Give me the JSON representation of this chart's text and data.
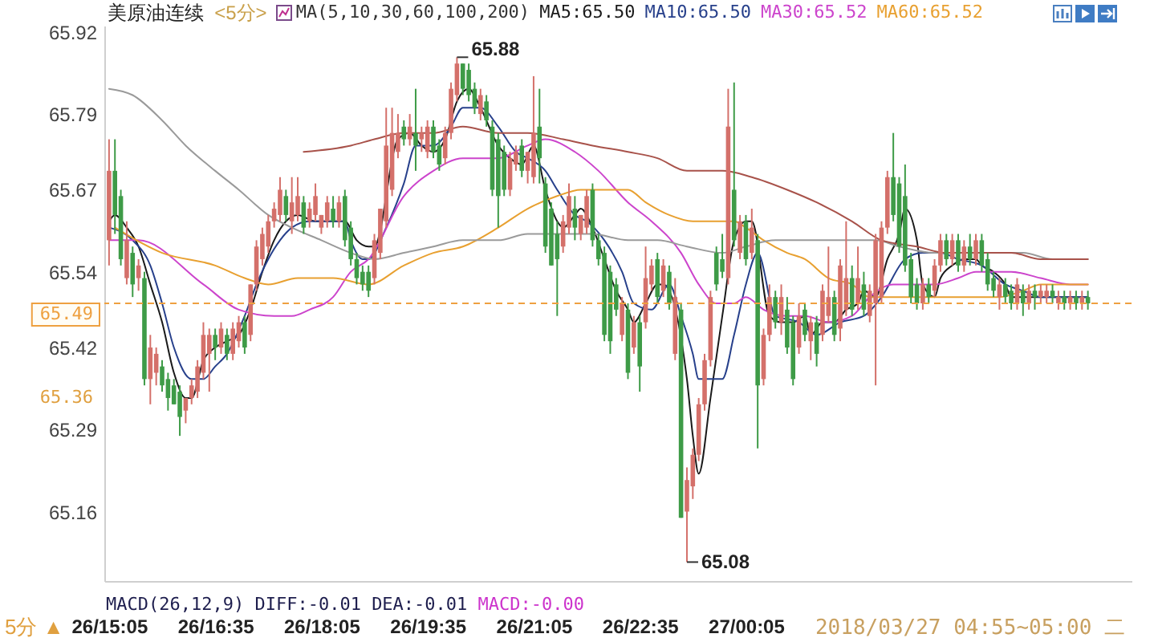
{
  "chart_data": {
    "type": "candlestick",
    "title": "美原油连续",
    "subtitle": "<5分>",
    "x": [
      "2018-03-26T15:05",
      "2018-03-26T15:10",
      "2018-03-26T15:15",
      "2018-03-26T15:20",
      "2018-03-26T15:25",
      "2018-03-26T15:30",
      "2018-03-26T15:35",
      "2018-03-26T15:40",
      "2018-03-26T15:45",
      "2018-03-26T15:50",
      "2018-03-26T15:55",
      "2018-03-26T16:00",
      "2018-03-26T16:05",
      "2018-03-26T16:10",
      "2018-03-26T16:15",
      "2018-03-26T16:20",
      "2018-03-26T16:25",
      "2018-03-26T16:30",
      "2018-03-26T16:35",
      "2018-03-26T16:40",
      "2018-03-26T16:45",
      "2018-03-26T16:50",
      "2018-03-26T16:55",
      "2018-03-26T17:00",
      "2018-03-26T17:05",
      "2018-03-26T17:10",
      "2018-03-26T17:15",
      "2018-03-26T17:20",
      "2018-03-26T17:25",
      "2018-03-26T17:30",
      "2018-03-26T17:35",
      "2018-03-26T17:40",
      "2018-03-26T17:45",
      "2018-03-26T17:50",
      "2018-03-26T17:55",
      "2018-03-26T18:00",
      "2018-03-26T18:05",
      "2018-03-26T18:10",
      "2018-03-26T18:15",
      "2018-03-26T18:20",
      "2018-03-26T18:25",
      "2018-03-26T18:30",
      "2018-03-26T18:35",
      "2018-03-26T18:40",
      "2018-03-26T18:45",
      "2018-03-26T18:50",
      "2018-03-26T18:55",
      "2018-03-26T19:00",
      "2018-03-26T19:05",
      "2018-03-26T19:10",
      "2018-03-26T19:15",
      "2018-03-26T19:20",
      "2018-03-26T19:25",
      "2018-03-26T19:30",
      "2018-03-26T19:35",
      "2018-03-26T19:40",
      "2018-03-26T19:45",
      "2018-03-26T19:50",
      "2018-03-26T19:55",
      "2018-03-26T20:00",
      "2018-03-26T20:05",
      "2018-03-26T20:10",
      "2018-03-26T20:15",
      "2018-03-26T20:20",
      "2018-03-26T20:25",
      "2018-03-26T20:30",
      "2018-03-26T20:35",
      "2018-03-26T20:40",
      "2018-03-26T20:45",
      "2018-03-26T20:50",
      "2018-03-26T20:55",
      "2018-03-26T21:00",
      "2018-03-26T21:05",
      "2018-03-26T21:10",
      "2018-03-26T21:15",
      "2018-03-26T21:20",
      "2018-03-26T21:25",
      "2018-03-26T21:30",
      "2018-03-26T21:35",
      "2018-03-26T21:40",
      "2018-03-26T21:45",
      "2018-03-26T21:50",
      "2018-03-26T21:55",
      "2018-03-26T22:00",
      "2018-03-26T22:05",
      "2018-03-26T22:10",
      "2018-03-26T22:15",
      "2018-03-26T22:20",
      "2018-03-26T22:25",
      "2018-03-26T22:30",
      "2018-03-26T22:35",
      "2018-03-26T22:40",
      "2018-03-26T22:45",
      "2018-03-26T22:50",
      "2018-03-26T22:55",
      "2018-03-26T23:00",
      "2018-03-26T23:05",
      "2018-03-26T23:10",
      "2018-03-26T23:15",
      "2018-03-26T23:20",
      "2018-03-26T23:25",
      "2018-03-26T23:30",
      "2018-03-26T23:35",
      "2018-03-26T23:40",
      "2018-03-26T23:45",
      "2018-03-26T23:50",
      "2018-03-26T23:55",
      "2018-03-27T00:00",
      "2018-03-27T00:05",
      "2018-03-27T00:10",
      "2018-03-27T00:15",
      "2018-03-27T00:20",
      "2018-03-27T00:25",
      "2018-03-27T00:30",
      "2018-03-27T00:35",
      "2018-03-27T00:40",
      "2018-03-27T00:45",
      "2018-03-27T00:50",
      "2018-03-27T00:55",
      "2018-03-27T01:00",
      "2018-03-27T01:05",
      "2018-03-27T01:10",
      "2018-03-27T01:15",
      "2018-03-27T01:20",
      "2018-03-27T01:25",
      "2018-03-27T01:30",
      "2018-03-27T01:35",
      "2018-03-27T01:40",
      "2018-03-27T01:45",
      "2018-03-27T01:50",
      "2018-03-27T01:55",
      "2018-03-27T02:00",
      "2018-03-27T02:05",
      "2018-03-27T02:10",
      "2018-03-27T02:15",
      "2018-03-27T02:20",
      "2018-03-27T02:25",
      "2018-03-27T02:30",
      "2018-03-27T02:35",
      "2018-03-27T02:40",
      "2018-03-27T02:45",
      "2018-03-27T02:50",
      "2018-03-27T02:55",
      "2018-03-27T03:00",
      "2018-03-27T03:05",
      "2018-03-27T03:10",
      "2018-03-27T03:15",
      "2018-03-27T03:20",
      "2018-03-27T03:25",
      "2018-03-27T03:30",
      "2018-03-27T03:35",
      "2018-03-27T03:40",
      "2018-03-27T03:45",
      "2018-03-27T03:50",
      "2018-03-27T03:55",
      "2018-03-27T04:00",
      "2018-03-27T04:05",
      "2018-03-27T04:10",
      "2018-03-27T04:15",
      "2018-03-27T04:20",
      "2018-03-27T04:25",
      "2018-03-27T04:30",
      "2018-03-27T04:35",
      "2018-03-27T04:40",
      "2018-03-27T04:45",
      "2018-03-27T04:50",
      "2018-03-27T04:55"
    ],
    "ohlc": [
      [
        65.59,
        65.75,
        65.55,
        65.7
      ],
      [
        65.7,
        65.75,
        65.6,
        65.63
      ],
      [
        65.66,
        65.67,
        65.55,
        65.56
      ],
      [
        65.53,
        65.62,
        65.52,
        65.59
      ],
      [
        65.57,
        65.58,
        65.5,
        65.52
      ],
      [
        65.53,
        65.56,
        65.51,
        65.55
      ],
      [
        65.53,
        65.54,
        65.36,
        65.37
      ],
      [
        65.37,
        65.44,
        65.33,
        65.42
      ],
      [
        65.38,
        65.42,
        65.36,
        65.41
      ],
      [
        65.39,
        65.4,
        65.35,
        65.36
      ],
      [
        65.37,
        65.38,
        65.32,
        65.34
      ],
      [
        65.36,
        65.37,
        65.33,
        65.33
      ],
      [
        65.35,
        65.36,
        65.28,
        65.31
      ],
      [
        65.32,
        65.34,
        65.3,
        65.34
      ],
      [
        65.34,
        65.37,
        65.33,
        65.36
      ],
      [
        65.35,
        65.4,
        65.34,
        65.39
      ],
      [
        65.38,
        65.46,
        65.37,
        65.44
      ],
      [
        65.41,
        65.45,
        65.35,
        65.44
      ],
      [
        65.44,
        65.45,
        65.4,
        65.42
      ],
      [
        65.42,
        65.46,
        65.41,
        65.45
      ],
      [
        65.44,
        65.45,
        65.4,
        65.41
      ],
      [
        65.41,
        65.46,
        65.4,
        65.45
      ],
      [
        65.43,
        65.47,
        65.42,
        65.46
      ],
      [
        65.46,
        65.47,
        65.41,
        65.42
      ],
      [
        65.44,
        65.52,
        65.43,
        65.52
      ],
      [
        65.52,
        65.59,
        65.51,
        65.58
      ],
      [
        65.56,
        65.61,
        65.55,
        65.6
      ],
      [
        65.58,
        65.63,
        65.57,
        65.62
      ],
      [
        65.62,
        65.65,
        65.61,
        65.64
      ],
      [
        65.63,
        65.69,
        65.62,
        65.67
      ],
      [
        65.66,
        65.67,
        65.62,
        65.63
      ],
      [
        65.62,
        65.69,
        65.6,
        65.65
      ],
      [
        65.63,
        65.69,
        65.62,
        65.66
      ],
      [
        65.65,
        65.66,
        65.6,
        65.61
      ],
      [
        65.62,
        65.65,
        65.61,
        65.64
      ],
      [
        65.63,
        65.68,
        65.62,
        65.66
      ],
      [
        65.61,
        65.63,
        65.6,
        65.63
      ],
      [
        65.62,
        65.66,
        65.61,
        65.65
      ],
      [
        65.64,
        65.66,
        65.61,
        65.62
      ],
      [
        65.62,
        65.66,
        65.61,
        65.65
      ],
      [
        65.66,
        65.67,
        65.58,
        65.59
      ],
      [
        65.61,
        65.62,
        65.55,
        65.56
      ],
      [
        65.56,
        65.57,
        65.52,
        65.53
      ],
      [
        65.54,
        65.55,
        65.51,
        65.52
      ],
      [
        65.54,
        65.55,
        65.5,
        65.51
      ],
      [
        65.53,
        65.6,
        65.52,
        65.59
      ],
      [
        65.57,
        65.64,
        65.56,
        65.64
      ],
      [
        65.62,
        65.8,
        65.61,
        65.74
      ],
      [
        65.67,
        65.8,
        65.66,
        65.76
      ],
      [
        65.73,
        65.79,
        65.72,
        65.76
      ],
      [
        65.77,
        65.78,
        65.74,
        65.75
      ],
      [
        65.75,
        65.79,
        65.74,
        65.77
      ],
      [
        65.76,
        65.83,
        65.7,
        65.74
      ],
      [
        65.75,
        65.77,
        65.73,
        65.76
      ],
      [
        65.73,
        65.78,
        65.72,
        65.77
      ],
      [
        65.77,
        65.78,
        65.72,
        65.73
      ],
      [
        65.74,
        65.75,
        65.7,
        65.71
      ],
      [
        65.72,
        65.77,
        65.71,
        65.76
      ],
      [
        65.76,
        65.84,
        65.75,
        65.83
      ],
      [
        65.82,
        65.88,
        65.81,
        65.87
      ],
      [
        65.87,
        65.87,
        65.82,
        65.83
      ],
      [
        65.86,
        65.87,
        65.81,
        65.82
      ],
      [
        65.83,
        65.84,
        65.79,
        65.8
      ],
      [
        65.79,
        65.83,
        65.78,
        65.82
      ],
      [
        65.81,
        65.82,
        65.77,
        65.78
      ],
      [
        65.77,
        65.78,
        65.66,
        65.67
      ],
      [
        65.75,
        65.76,
        65.61,
        65.66
      ],
      [
        65.73,
        65.74,
        65.66,
        65.67
      ],
      [
        65.67,
        65.73,
        65.66,
        65.72
      ],
      [
        65.71,
        65.74,
        65.7,
        65.73
      ],
      [
        65.74,
        65.75,
        65.69,
        65.7
      ],
      [
        65.7,
        65.73,
        65.68,
        65.73
      ],
      [
        65.69,
        65.85,
        65.68,
        65.76
      ],
      [
        65.77,
        65.83,
        65.68,
        65.72
      ],
      [
        65.68,
        65.69,
        65.57,
        65.58
      ],
      [
        65.64,
        65.65,
        65.55,
        65.55
      ],
      [
        65.6,
        65.62,
        65.47,
        65.56
      ],
      [
        65.58,
        65.63,
        65.57,
        65.62
      ],
      [
        65.61,
        65.68,
        65.6,
        65.66
      ],
      [
        65.64,
        65.66,
        65.59,
        65.61
      ],
      [
        65.6,
        65.63,
        65.59,
        65.63
      ],
      [
        65.61,
        65.67,
        65.6,
        65.66
      ],
      [
        65.67,
        65.68,
        65.58,
        65.59
      ],
      [
        65.59,
        65.6,
        65.55,
        65.56
      ],
      [
        65.57,
        65.58,
        65.43,
        65.44
      ],
      [
        65.54,
        65.55,
        65.41,
        65.43
      ],
      [
        65.52,
        65.53,
        65.47,
        65.48
      ],
      [
        65.44,
        65.5,
        65.43,
        65.49
      ],
      [
        65.48,
        65.49,
        65.37,
        65.38
      ],
      [
        65.42,
        65.47,
        65.41,
        65.46
      ],
      [
        65.46,
        65.47,
        65.35,
        65.39
      ],
      [
        65.46,
        65.58,
        65.45,
        65.53
      ],
      [
        65.52,
        65.56,
        65.51,
        65.55
      ],
      [
        65.56,
        65.57,
        65.49,
        65.5
      ],
      [
        65.51,
        65.56,
        65.5,
        65.55
      ],
      [
        65.54,
        65.55,
        65.48,
        65.49
      ],
      [
        65.41,
        65.53,
        65.4,
        65.5
      ],
      [
        65.48,
        65.49,
        65.15,
        65.15
      ],
      [
        65.16,
        65.23,
        65.08,
        65.21
      ],
      [
        65.2,
        65.26,
        65.18,
        65.25
      ],
      [
        65.25,
        65.34,
        65.24,
        65.33
      ],
      [
        65.33,
        65.41,
        65.32,
        65.4
      ],
      [
        65.4,
        65.51,
        65.39,
        65.5
      ],
      [
        65.57,
        65.58,
        65.51,
        65.52
      ],
      [
        65.56,
        65.6,
        65.53,
        65.54
      ],
      [
        65.53,
        65.83,
        65.52,
        65.77
      ],
      [
        65.67,
        65.84,
        65.58,
        65.59
      ],
      [
        65.57,
        65.63,
        65.56,
        65.62
      ],
      [
        65.62,
        65.63,
        65.55,
        65.56
      ],
      [
        65.57,
        65.64,
        65.56,
        65.61
      ],
      [
        65.59,
        65.6,
        65.26,
        65.36
      ],
      [
        65.37,
        65.45,
        65.36,
        65.44
      ],
      [
        65.44,
        65.52,
        65.43,
        65.5
      ],
      [
        65.5,
        65.51,
        65.45,
        65.46
      ],
      [
        65.46,
        65.52,
        65.44,
        65.5
      ],
      [
        65.48,
        65.5,
        65.41,
        65.42
      ],
      [
        65.46,
        65.47,
        65.36,
        65.37
      ],
      [
        65.42,
        65.49,
        65.41,
        65.47
      ],
      [
        65.48,
        65.49,
        65.43,
        65.44
      ],
      [
        65.43,
        65.47,
        65.4,
        65.46
      ],
      [
        65.46,
        65.47,
        65.39,
        65.41
      ],
      [
        65.44,
        65.52,
        65.43,
        65.51
      ],
      [
        65.47,
        65.58,
        65.46,
        65.5
      ],
      [
        65.5,
        65.51,
        65.43,
        65.44
      ],
      [
        65.45,
        65.56,
        65.43,
        65.55
      ],
      [
        65.48,
        65.62,
        65.47,
        65.53
      ],
      [
        65.53,
        65.55,
        65.47,
        65.48
      ],
      [
        65.49,
        65.58,
        65.48,
        65.53
      ],
      [
        65.52,
        65.54,
        65.47,
        65.48
      ],
      [
        65.47,
        65.52,
        65.46,
        65.51
      ],
      [
        65.49,
        65.6,
        65.36,
        65.59
      ],
      [
        65.5,
        65.62,
        65.49,
        65.61
      ],
      [
        65.61,
        65.7,
        65.6,
        65.69
      ],
      [
        65.69,
        65.76,
        65.62,
        65.63
      ],
      [
        65.68,
        65.69,
        65.57,
        65.58
      ],
      [
        65.66,
        65.71,
        65.54,
        65.55
      ],
      [
        65.56,
        65.57,
        65.49,
        65.5
      ],
      [
        65.52,
        65.53,
        65.48,
        65.49
      ],
      [
        65.49,
        65.53,
        65.48,
        65.52
      ],
      [
        65.52,
        65.53,
        65.49,
        65.5
      ],
      [
        65.51,
        65.56,
        65.5,
        65.55
      ],
      [
        65.55,
        65.6,
        65.54,
        65.59
      ],
      [
        65.59,
        65.6,
        65.55,
        65.56
      ],
      [
        65.56,
        65.6,
        65.55,
        65.59
      ],
      [
        65.59,
        65.6,
        65.54,
        65.55
      ],
      [
        65.55,
        65.59,
        65.54,
        65.58
      ],
      [
        65.58,
        65.6,
        65.55,
        65.56
      ],
      [
        65.56,
        65.6,
        65.55,
        65.59
      ],
      [
        65.59,
        65.6,
        65.54,
        65.55
      ],
      [
        65.56,
        65.57,
        65.51,
        65.52
      ],
      [
        65.53,
        65.54,
        65.5,
        65.51
      ],
      [
        65.5,
        65.53,
        65.48,
        65.52
      ],
      [
        65.52,
        65.53,
        65.49,
        65.5
      ],
      [
        65.51,
        65.52,
        65.48,
        65.49
      ],
      [
        65.49,
        65.53,
        65.48,
        65.52
      ],
      [
        65.51,
        65.52,
        65.47,
        65.49
      ],
      [
        65.49,
        65.52,
        65.48,
        65.51
      ],
      [
        65.51,
        65.52,
        65.48,
        65.5
      ],
      [
        65.5,
        65.52,
        65.49,
        65.51
      ],
      [
        65.5,
        65.52,
        65.49,
        65.51
      ],
      [
        65.51,
        65.52,
        65.49,
        65.5
      ],
      [
        65.49,
        65.51,
        65.48,
        65.5
      ],
      [
        65.5,
        65.51,
        65.48,
        65.49
      ],
      [
        65.49,
        65.51,
        65.48,
        65.5
      ],
      [
        65.5,
        65.51,
        65.48,
        65.49
      ],
      [
        65.49,
        65.51,
        65.48,
        65.5
      ],
      [
        65.5,
        65.51,
        65.48,
        65.49
      ]
    ],
    "colors": [
      "#d4706a",
      "#3e9b47",
      "#3e9b47",
      "#d4706a",
      "#3e9b47",
      "#d4706a",
      "#3e9b47",
      "#d4706a",
      "#d4706a",
      "#3e9b47",
      "#3e9b47",
      "#3e9b47",
      "#3e9b47",
      "#d4706a",
      "#d4706a",
      "#d4706a",
      "#d4706a",
      "#d4706a",
      "#3e9b47",
      "#d4706a",
      "#3e9b47",
      "#d4706a",
      "#d4706a",
      "#3e9b47",
      "#d4706a",
      "#d4706a",
      "#d4706a",
      "#d4706a",
      "#d4706a",
      "#d4706a",
      "#3e9b47",
      "#d4706a",
      "#d4706a",
      "#3e9b47",
      "#d4706a",
      "#d4706a",
      "#d4706a",
      "#d4706a",
      "#3e9b47",
      "#d4706a",
      "#3e9b47",
      "#3e9b47",
      "#3e9b47",
      "#3e9b47",
      "#3e9b47",
      "#d4706a",
      "#d4706a",
      "#d4706a",
      "#d4706a",
      "#d4706a",
      "#3e9b47",
      "#d4706a",
      "#3e9b47",
      "#d4706a",
      "#d4706a",
      "#3e9b47",
      "#3e9b47",
      "#d4706a",
      "#d4706a",
      "#d4706a",
      "#3e9b47",
      "#3e9b47",
      "#3e9b47",
      "#d4706a",
      "#3e9b47",
      "#3e9b47",
      "#3e9b47",
      "#3e9b47",
      "#d4706a",
      "#d4706a",
      "#3e9b47",
      "#d4706a",
      "#d4706a",
      "#3e9b47",
      "#3e9b47",
      "#3e9b47",
      "#3e9b47",
      "#d4706a",
      "#d4706a",
      "#3e9b47",
      "#d4706a",
      "#d4706a",
      "#3e9b47",
      "#3e9b47",
      "#3e9b47",
      "#3e9b47",
      "#3e9b47",
      "#d4706a",
      "#3e9b47",
      "#d4706a",
      "#3e9b47",
      "#d4706a",
      "#d4706a",
      "#3e9b47",
      "#d4706a",
      "#3e9b47",
      "#d4706a",
      "#3e9b47",
      "#d4706a",
      "#d4706a",
      "#d4706a",
      "#d4706a",
      "#d4706a",
      "#3e9b47",
      "#3e9b47",
      "#d4706a",
      "#3e9b47",
      "#d4706a",
      "#3e9b47",
      "#d4706a",
      "#3e9b47",
      "#d4706a",
      "#d4706a",
      "#3e9b47",
      "#d4706a",
      "#3e9b47",
      "#3e9b47",
      "#d4706a",
      "#3e9b47",
      "#d4706a",
      "#3e9b47",
      "#d4706a",
      "#d4706a",
      "#3e9b47",
      "#d4706a",
      "#d4706a",
      "#3e9b47",
      "#d4706a",
      "#3e9b47",
      "#d4706a",
      "#d4706a",
      "#d4706a",
      "#d4706a",
      "#3e9b47",
      "#3e9b47",
      "#3e9b47",
      "#3e9b47",
      "#3e9b47",
      "#d4706a",
      "#3e9b47",
      "#d4706a",
      "#d4706a",
      "#3e9b47",
      "#d4706a",
      "#3e9b47",
      "#d4706a",
      "#3e9b47",
      "#d4706a",
      "#3e9b47",
      "#3e9b47",
      "#3e9b47",
      "#d4706a",
      "#3e9b47",
      "#3e9b47",
      "#d4706a",
      "#3e9b47",
      "#d4706a",
      "#3e9b47",
      "#d4706a",
      "#d4706a",
      "#3e9b47",
      "#d4706a",
      "#3e9b47",
      "#d4706a",
      "#3e9b47",
      "#d4706a",
      "#3e9b47"
    ],
    "series": [
      {
        "type": "line",
        "name": "MA5:65.50",
        "color": "#1a1a1a",
        "x": [
          "2018-03-26T15:05",
          "2018-03-26T15:10",
          "2018-03-26T15:20",
          "2018-03-26T15:30",
          "2018-03-26T15:40",
          "2018-03-26T15:50",
          "2018-03-26T16:00",
          "2018-03-26T16:10",
          "2018-03-26T16:15",
          "2018-03-26T16:25",
          "2018-03-26T16:35",
          "2018-03-26T16:45",
          "2018-03-26T16:55",
          "2018-03-26T17:05",
          "2018-03-26T17:15",
          "2018-03-26T17:25",
          "2018-03-26T17:35",
          "2018-03-26T17:45",
          "2018-03-26T18:00",
          "2018-03-26T18:15",
          "2018-03-26T18:25",
          "2018-03-26T18:35",
          "2018-03-26T18:45",
          "2018-03-26T18:50",
          "2018-03-26T19:10",
          "2018-03-26T19:20",
          "2018-03-26T19:30",
          "2018-03-26T19:40",
          "2018-03-26T19:50",
          "2018-03-26T20:00",
          "2018-03-26T20:10",
          "2018-03-26T20:20",
          "2018-03-26T20:35",
          "2018-03-26T20:45",
          "2018-03-26T20:55",
          "2018-03-26T21:05",
          "2018-03-26T21:15",
          "2018-03-26T21:25",
          "2018-03-26T21:30",
          "2018-03-26T21:40",
          "2018-03-26T21:45",
          "2018-03-26T21:55",
          "2018-03-26T22:05",
          "2018-03-26T22:15",
          "2018-03-26T22:25",
          "2018-03-26T22:30",
          "2018-03-26T22:40",
          "2018-03-26T22:50",
          "2018-03-26T22:55",
          "2018-03-26T23:15",
          "2018-03-26T23:20",
          "2018-03-26T23:25",
          "2018-03-26T23:35",
          "2018-03-26T23:45",
          "2018-03-26T23:55",
          "2018-03-27T00:05",
          "2018-03-27T00:10",
          "2018-03-27T00:25",
          "2018-03-27T00:35",
          "2018-03-27T00:45",
          "2018-03-27T00:55",
          "2018-03-27T01:00",
          "2018-03-27T01:10",
          "2018-03-27T01:20",
          "2018-03-27T01:30",
          "2018-03-27T01:40",
          "2018-03-27T01:45",
          "2018-03-27T01:55",
          "2018-03-27T02:05",
          "2018-03-27T02:15",
          "2018-03-27T02:20",
          "2018-03-27T02:30",
          "2018-03-27T02:35",
          "2018-03-27T02:45",
          "2018-03-27T02:50",
          "2018-03-27T03:00",
          "2018-03-27T03:10",
          "2018-03-27T03:20",
          "2018-03-27T03:25",
          "2018-03-27T03:35",
          "2018-03-27T03:45",
          "2018-03-27T03:50",
          "2018-03-27T04:05",
          "2018-03-27T04:15",
          "2018-03-27T04:30",
          "2018-03-27T04:45",
          "2018-03-27T04:55"
        ],
        "values": [
          65.62,
          65.63,
          65.61,
          65.58,
          65.52,
          65.46,
          65.38,
          65.34,
          65.34,
          65.4,
          65.42,
          65.43,
          65.44,
          65.48,
          65.54,
          65.59,
          65.62,
          65.63,
          65.62,
          65.62,
          65.62,
          65.59,
          65.58,
          65.58,
          65.75,
          65.76,
          65.74,
          65.73,
          65.75,
          65.81,
          65.83,
          65.8,
          65.74,
          65.72,
          65.71,
          65.74,
          65.67,
          65.62,
          65.61,
          65.63,
          65.64,
          65.61,
          65.56,
          65.51,
          65.48,
          65.46,
          65.49,
          65.52,
          65.52,
          65.37,
          65.28,
          65.22,
          65.34,
          65.47,
          65.59,
          65.62,
          65.62,
          65.47,
          65.46,
          65.46,
          65.47,
          65.44,
          65.46,
          65.46,
          65.48,
          65.49,
          65.51,
          65.5,
          65.56,
          65.6,
          65.64,
          65.59,
          65.52,
          65.5,
          65.53,
          65.55,
          65.56,
          65.56,
          65.55,
          65.54,
          65.52,
          65.5,
          65.5,
          65.5,
          65.5,
          65.5,
          65.5
        ]
      },
      {
        "type": "line",
        "name": "MA10:65.50",
        "color": "#27408b",
        "x": [
          "2018-03-26T15:05",
          "2018-03-26T15:25",
          "2018-03-26T15:40",
          "2018-03-26T15:50",
          "2018-03-26T16:00",
          "2018-03-26T16:15",
          "2018-03-26T16:25",
          "2018-03-26T16:35",
          "2018-03-26T16:45",
          "2018-03-26T17:00",
          "2018-03-26T17:10",
          "2018-03-26T17:20",
          "2018-03-26T17:30",
          "2018-03-26T17:40",
          "2018-03-26T17:55",
          "2018-03-26T18:15",
          "2018-03-26T18:25",
          "2018-03-26T18:30",
          "2018-03-26T18:40",
          "2018-03-26T18:45",
          "2018-03-26T19:00",
          "2018-03-26T19:15",
          "2018-03-26T19:25",
          "2018-03-26T19:40",
          "2018-03-26T19:55",
          "2018-03-26T20:05",
          "2018-03-26T20:20",
          "2018-03-26T20:35",
          "2018-03-26T20:50",
          "2018-03-26T21:00",
          "2018-03-26T21:15",
          "2018-03-26T21:25",
          "2018-03-26T21:40",
          "2018-03-26T21:50",
          "2018-03-26T22:05",
          "2018-03-26T22:20",
          "2018-03-26T22:30",
          "2018-03-26T22:45",
          "2018-03-26T23:00",
          "2018-03-26T23:10",
          "2018-03-26T23:20",
          "2018-03-26T23:25",
          "2018-03-26T23:35",
          "2018-03-26T23:45",
          "2018-03-26T23:55",
          "2018-03-27T00:05",
          "2018-03-27T00:15",
          "2018-03-27T00:30",
          "2018-03-27T00:50",
          "2018-03-27T01:05",
          "2018-03-27T01:25",
          "2018-03-27T01:45",
          "2018-03-27T02:00",
          "2018-03-27T02:20",
          "2018-03-27T02:35",
          "2018-03-27T02:50",
          "2018-03-27T03:05",
          "2018-03-27T03:25",
          "2018-03-27T03:45",
          "2018-03-27T04:00",
          "2018-03-27T04:15",
          "2018-03-27T04:55"
        ],
        "values": [
          65.61,
          65.59,
          65.55,
          65.49,
          65.42,
          65.37,
          65.37,
          65.39,
          65.41,
          65.47,
          65.52,
          65.56,
          65.59,
          65.61,
          65.62,
          65.62,
          65.62,
          65.59,
          65.56,
          65.56,
          65.61,
          65.68,
          65.74,
          65.74,
          65.77,
          65.8,
          65.8,
          65.77,
          65.73,
          65.72,
          65.7,
          65.67,
          65.63,
          65.62,
          65.59,
          65.54,
          65.49,
          65.48,
          65.52,
          65.47,
          65.41,
          65.37,
          65.37,
          65.37,
          65.44,
          65.52,
          65.57,
          65.47,
          65.46,
          65.44,
          65.46,
          65.47,
          65.5,
          65.56,
          65.57,
          65.57,
          65.56,
          65.55,
          65.52,
          65.51,
          65.5,
          65.5
        ]
      },
      {
        "type": "line",
        "name": "MA30:65.52",
        "color": "#cc44cc",
        "x": [
          "2018-03-26T15:05",
          "2018-03-26T15:30",
          "2018-03-26T16:25",
          "2018-03-26T16:55",
          "2018-03-26T17:25",
          "2018-03-26T17:40",
          "2018-03-26T17:55",
          "2018-03-26T18:15",
          "2018-03-26T18:30",
          "2018-03-26T18:45",
          "2018-03-26T19:15",
          "2018-03-26T19:40",
          "2018-03-26T20:05",
          "2018-03-26T20:35",
          "2018-03-26T21:00",
          "2018-03-26T21:15",
          "2018-03-26T21:40",
          "2018-03-26T22:00",
          "2018-03-26T22:25",
          "2018-03-26T22:45",
          "2018-03-26T23:10",
          "2018-03-26T23:25",
          "2018-03-26T23:40",
          "2018-03-26T23:55",
          "2018-03-27T00:05",
          "2018-03-27T00:20",
          "2018-03-27T00:40",
          "2018-03-27T00:55",
          "2018-03-27T01:15",
          "2018-03-27T01:35",
          "2018-03-27T01:50",
          "2018-03-27T02:10",
          "2018-03-27T02:30",
          "2018-03-27T02:45",
          "2018-03-27T03:05",
          "2018-03-27T03:20",
          "2018-03-27T03:50",
          "2018-03-27T04:15",
          "2018-03-27T04:40",
          "2018-03-27T04:55"
        ],
        "values": [
          65.59,
          65.59,
          65.52,
          65.48,
          65.47,
          65.47,
          65.48,
          65.5,
          65.54,
          65.56,
          65.66,
          65.7,
          65.72,
          65.72,
          65.74,
          65.75,
          65.73,
          65.7,
          65.65,
          65.62,
          65.57,
          65.52,
          65.49,
          65.49,
          65.5,
          65.48,
          65.47,
          65.47,
          65.46,
          65.47,
          65.5,
          65.52,
          65.52,
          65.52,
          65.53,
          65.54,
          65.54,
          65.53,
          65.52,
          65.52
        ]
      },
      {
        "type": "line",
        "name": "MA60:65.52",
        "color": "#e8a030",
        "x": [
          "2018-03-26T15:10",
          "2018-03-26T15:50",
          "2018-03-26T16:35",
          "2018-03-26T17:00",
          "2018-03-26T17:20",
          "2018-03-26T17:45",
          "2018-03-26T18:15",
          "2018-03-26T18:45",
          "2018-03-26T19:15",
          "2018-03-26T19:40",
          "2018-03-26T20:05",
          "2018-03-26T20:35",
          "2018-03-26T21:00",
          "2018-03-26T21:25",
          "2018-03-26T21:45",
          "2018-03-26T22:10",
          "2018-03-26T22:25",
          "2018-03-26T22:40",
          "2018-03-26T23:00",
          "2018-03-26T23:20",
          "2018-03-26T23:30",
          "2018-03-26T23:55",
          "2018-03-27T00:05",
          "2018-03-27T00:20",
          "2018-03-27T00:40",
          "2018-03-27T00:55",
          "2018-03-27T01:15",
          "2018-03-27T01:35",
          "2018-03-27T01:50",
          "2018-03-27T02:10",
          "2018-03-27T02:45",
          "2018-03-27T03:20",
          "2018-03-27T03:40",
          "2018-03-27T04:00",
          "2018-03-27T04:15",
          "2018-03-27T04:35",
          "2018-03-27T04:55"
        ],
        "values": [
          65.61,
          65.57,
          65.55,
          65.53,
          65.52,
          65.53,
          65.53,
          65.52,
          65.55,
          65.57,
          65.58,
          65.61,
          65.64,
          65.66,
          65.67,
          65.67,
          65.67,
          65.65,
          65.63,
          65.62,
          65.62,
          65.62,
          65.61,
          65.59,
          65.57,
          65.56,
          65.53,
          65.52,
          65.5,
          65.5,
          65.5,
          65.5,
          65.5,
          65.51,
          65.52,
          65.52,
          65.52
        ]
      },
      {
        "type": "line",
        "color": "#9a9a9a",
        "x": [
          "2018-03-26T15:05",
          "2018-03-26T15:25",
          "2018-03-26T15:50",
          "2018-03-26T16:10",
          "2018-03-26T16:35",
          "2018-03-26T16:55",
          "2018-03-26T17:20",
          "2018-03-26T17:40",
          "2018-03-26T18:05",
          "2018-03-26T18:30",
          "2018-03-26T18:50",
          "2018-03-26T19:15",
          "2018-03-26T19:40",
          "2018-03-26T20:05",
          "2018-03-26T20:35",
          "2018-03-26T21:00",
          "2018-03-26T21:30",
          "2018-03-26T21:55",
          "2018-03-26T22:25",
          "2018-03-26T22:50",
          "2018-03-26T23:15",
          "2018-03-26T23:45",
          "2018-03-27T00:05",
          "2018-03-27T00:30",
          "2018-03-27T01:30",
          "2018-03-27T01:55",
          "2018-03-27T02:15",
          "2018-03-27T02:45",
          "2018-03-27T03:20",
          "2018-03-27T04:00",
          "2018-03-27T04:25",
          "2018-03-27T04:55"
        ],
        "values": [
          65.83,
          65.82,
          65.78,
          65.74,
          65.7,
          65.67,
          65.63,
          65.61,
          65.59,
          65.57,
          65.56,
          65.57,
          65.58,
          65.59,
          65.59,
          65.6,
          65.6,
          65.6,
          65.59,
          65.59,
          65.58,
          65.57,
          65.58,
          65.59,
          65.59,
          65.59,
          65.58,
          65.57,
          65.57,
          65.57,
          65.56,
          65.56
        ]
      },
      {
        "type": "line",
        "color": "#a8524a",
        "x": [
          "2018-03-26T17:50",
          "2018-03-26T18:30",
          "2018-03-26T18:50",
          "2018-03-26T19:15",
          "2018-03-26T19:40",
          "2018-03-26T20:05",
          "2018-03-26T20:35",
          "2018-03-26T21:00",
          "2018-03-26T21:30",
          "2018-03-26T21:55",
          "2018-03-26T22:25",
          "2018-03-26T22:50",
          "2018-03-26T23:15",
          "2018-03-26T23:45",
          "2018-03-27T00:10",
          "2018-03-27T00:40",
          "2018-03-27T01:05",
          "2018-03-27T01:35",
          "2018-03-27T02:00",
          "2018-03-27T02:30",
          "2018-03-27T02:55",
          "2018-03-27T03:20",
          "2018-03-27T03:50",
          "2018-03-27T04:15",
          "2018-03-27T04:55"
        ],
        "values": [
          65.73,
          65.74,
          65.75,
          65.76,
          65.76,
          65.77,
          65.76,
          65.76,
          65.75,
          65.74,
          65.73,
          65.72,
          65.7,
          65.7,
          65.69,
          65.67,
          65.65,
          65.62,
          65.59,
          65.58,
          65.57,
          65.57,
          65.57,
          65.56,
          65.56
        ]
      }
    ],
    "xlim": [
      "2018-03-26T15:01",
      "2018-03-27T05:32"
    ],
    "xticks": [
      {
        "value": "2018-03-26T15:05",
        "label": "26/15:05"
      },
      {
        "value": "2018-03-26T16:35",
        "label": "26/16:35"
      },
      {
        "value": "2018-03-26T18:05",
        "label": "26/18:05"
      },
      {
        "value": "2018-03-26T19:35",
        "label": "26/19:35"
      },
      {
        "value": "2018-03-26T21:05",
        "label": "26/21:05"
      },
      {
        "value": "2018-03-26T22:35",
        "label": "26/22:35"
      },
      {
        "value": "2018-03-27T00:05",
        "label": "27/00:05"
      }
    ],
    "ylim": [
      65.05,
      65.93
    ],
    "yticks": [
      65.16,
      65.29,
      65.42,
      65.54,
      65.67,
      65.79,
      65.92
    ],
    "ref_lines": [
      {
        "axis": "y",
        "value": 65.49,
        "label": "65.49",
        "color": "#eea040",
        "line_style": "dashed"
      }
    ],
    "annotations": [
      "MA(5,10,30,60,100,200)",
      "MACD(26,12,9) DIFF:-0.01 DEA:-0.01",
      "MACD:-0.00",
      "5分 ▲",
      "2018/03/27 04:55~05:00 二",
      "65.36",
      {
        "text": "65.88",
        "x": "2018-03-26T20:00",
        "y": 65.88
      },
      {
        "text": "65.08",
        "x": "2018-03-26T23:15",
        "y": 65.08
      }
    ],
    "legend": "top left"
  }
}
